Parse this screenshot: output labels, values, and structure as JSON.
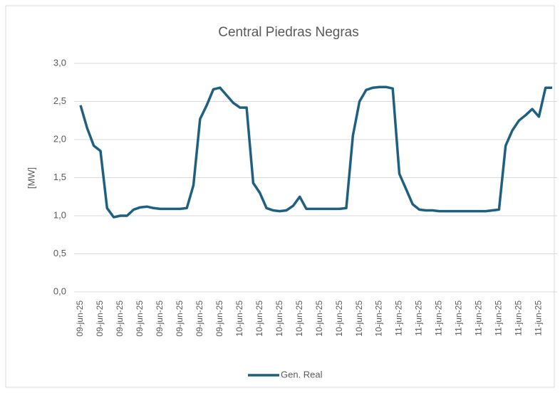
{
  "chart_data": {
    "type": "line",
    "title": "Central Piedras Negras",
    "y_label": "[MW]",
    "categories": [
      "09-jun-25",
      null,
      null,
      "09-jun-25",
      null,
      null,
      "09-jun-25",
      null,
      null,
      "09-jun-25",
      null,
      null,
      "09-jun-25",
      null,
      null,
      "09-jun-25",
      null,
      null,
      "09-jun-25",
      null,
      null,
      "09-jun-25",
      null,
      null,
      "10-jun-25",
      null,
      null,
      "10-jun-25",
      null,
      null,
      "10-jun-25",
      null,
      null,
      "10-jun-25",
      null,
      null,
      "10-jun-25",
      null,
      null,
      "10-jun-25",
      null,
      null,
      "10-jun-25",
      null,
      null,
      "10-jun-25",
      null,
      null,
      "11-jun-25",
      null,
      null,
      "11-jun-25",
      null,
      null,
      "11-jun-25",
      null,
      null,
      "11-jun-25",
      null,
      null,
      "11-jun-25",
      null,
      null,
      "11-jun-25",
      null,
      null,
      "11-jun-25",
      null,
      null,
      "11-jun-25",
      null,
      null
    ],
    "series": [
      {
        "name": "Gen. Real",
        "color": "#1f5f7f",
        "values": [
          2.45,
          2.15,
          1.92,
          1.85,
          1.1,
          0.98,
          1.0,
          1.0,
          1.08,
          1.11,
          1.12,
          1.1,
          1.09,
          1.09,
          1.09,
          1.09,
          1.1,
          1.4,
          2.27,
          2.45,
          2.66,
          2.68,
          2.58,
          2.48,
          2.42,
          2.42,
          1.43,
          1.3,
          1.1,
          1.07,
          1.06,
          1.07,
          1.13,
          1.25,
          1.09,
          1.09,
          1.09,
          1.09,
          1.09,
          1.09,
          1.1,
          2.05,
          2.5,
          2.65,
          2.68,
          2.69,
          2.69,
          2.67,
          1.55,
          1.35,
          1.15,
          1.08,
          1.07,
          1.07,
          1.06,
          1.06,
          1.06,
          1.06,
          1.06,
          1.06,
          1.06,
          1.06,
          1.07,
          1.08,
          1.92,
          2.12,
          2.25,
          2.32,
          2.4,
          2.3,
          2.68,
          2.68
        ]
      }
    ],
    "ylim": [
      0,
      3
    ],
    "yticks": [
      {
        "value": 0,
        "label": "0,0"
      },
      {
        "value": 0.5,
        "label": "0,5"
      },
      {
        "value": 1,
        "label": "1,0"
      },
      {
        "value": 1.5,
        "label": "1,5"
      },
      {
        "value": 2,
        "label": "2,0"
      },
      {
        "value": 2.5,
        "label": "2,5"
      },
      {
        "value": 3,
        "label": "3,0"
      }
    ],
    "grid": true,
    "legend": "bottom"
  }
}
